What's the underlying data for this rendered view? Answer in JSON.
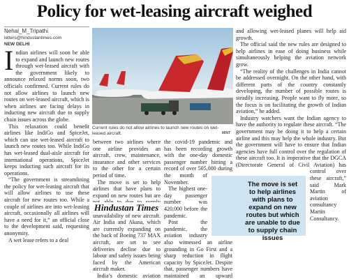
{
  "headline": "Policy for wet-leasing aircraft weighed",
  "byline": {
    "name": "Nehal_M_Tripathi",
    "email": "letters@hindustantimes.com",
    "dateline": "NEW DELHI"
  },
  "photo": {
    "caption": "Current rules do not allow airlines to launch new routes on wet-leased aircraft.",
    "credit": "MINT"
  },
  "columns": [
    [
      "Indian airlines will soon be able to expand and launch new routes through wet-leased aircraft with the government likely to announce relaxed norms soon, two officials confirmed. Current rules do not allow airlines to launch new routes on wet-leased aircraft, which is when airlines are facing delays in inducting new aircraft due to supply chain issues across the globe.",
      "This relaxation could benefit airlines like IndiGo and SpiceJet, which can use wet-leased aircraft to launch new routes too. While IndiGo has wet-leased dual-aisle aircraft for international operations, SpiceJet keeps inducting such aircraft for its operations.",
      "“The government is streamlining the policy for wet-leasing aircraft that will allow airlines to use these aircraft for new routes too. While a couple of airlines are into wet-leasing aircraft, occasionally all airlines will have a need for it,” an official close to the development said, requesting anonymity.",
      "A wet lease refers to a deal"
    ],
    [
      "between two airlines where one airline provides an aircraft, crew, maintenance, insurance and other services to the other for a certain period of time.",
      "The move is set to help airlines that have plans to expand on new routes but are not able to due to supply chain issues leading to unavailability of new aircraft. Air India and Akasa, which are currently expanding on the back of Boeing 737 MAX aircraft, are set to see deliveries decline due to labour and safety issues being faced by the American aircraft maker.",
      "India’s domestic aviation market has been an outlier post"
    ],
    [
      "the covid-19 pandemic and has been recording growth with the one-day domestic passenger number hitting a record of over 505,000 during the month of November.",
      "The highest one-day passenger number was 420,000 before the pandemic.",
      "Post the pandemic, the aviation industry also witnessed an airline grounding in Go First and a sharp reduction in flight capacity by SpiceJet. Despite that, passenger numbers have maintained an upward trajectory,"
    ],
    [
      "and allowing wet-leased planes will help aid growth.",
      "The official said the new rules are designed to help airlines in ease of doing business while simultaneously helping the aviation network grow.",
      "“The reality of the challenges in India cannot be addressed overnight. On the other hand, with different parts of the country constantly developing, the number of possible routes is steadily increasing. People want to fly more, so the focus is on facilitating the growth of Indian aviation,” he added.",
      "Industry watchers want the Indian agency to have the authority to regulate these aircraft. “The government may be doing it to help a certain airline and this may help the whole industry. But the government will have to ensure that Indian agencies have full control over the regulation of these aircraft too. It is imperative that the DGCA (Directorate General of Civil Aviation) has control over these aircraft,” said Mark Martin of aviation consultancy Martin Consultancy."
    ]
  ],
  "pull_quote": "The move is set to help airlines with plans to expand on new routes but which are unable to due to supply chain issues",
  "watermark": "Hindustan Times"
}
